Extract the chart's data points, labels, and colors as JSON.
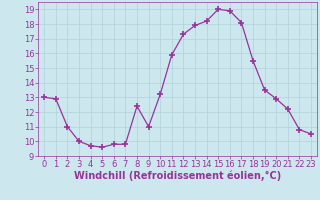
{
  "x": [
    0,
    1,
    2,
    3,
    4,
    5,
    6,
    7,
    8,
    9,
    10,
    11,
    12,
    13,
    14,
    15,
    16,
    17,
    18,
    19,
    20,
    21,
    22,
    23
  ],
  "y": [
    13,
    12.9,
    11,
    10,
    9.7,
    9.6,
    9.8,
    9.8,
    12.4,
    11,
    13.2,
    15.9,
    17.3,
    17.9,
    18.2,
    19.0,
    18.9,
    18.1,
    15.5,
    13.5,
    12.9,
    12.2,
    10.8,
    10.5
  ],
  "line_color": "#993399",
  "marker": "+",
  "marker_size": 4,
  "bg_color": "#cce8ee",
  "grid_color": "#b0d0d8",
  "xlabel": "Windchill (Refroidissement éolien,°C)",
  "xlim": [
    -0.5,
    23.5
  ],
  "ylim": [
    9,
    19.5
  ],
  "yticks": [
    9,
    10,
    11,
    12,
    13,
    14,
    15,
    16,
    17,
    18,
    19
  ],
  "xticks": [
    0,
    1,
    2,
    3,
    4,
    5,
    6,
    7,
    8,
    9,
    10,
    11,
    12,
    13,
    14,
    15,
    16,
    17,
    18,
    19,
    20,
    21,
    22,
    23
  ],
  "tick_fontsize": 6,
  "xlabel_fontsize": 7
}
